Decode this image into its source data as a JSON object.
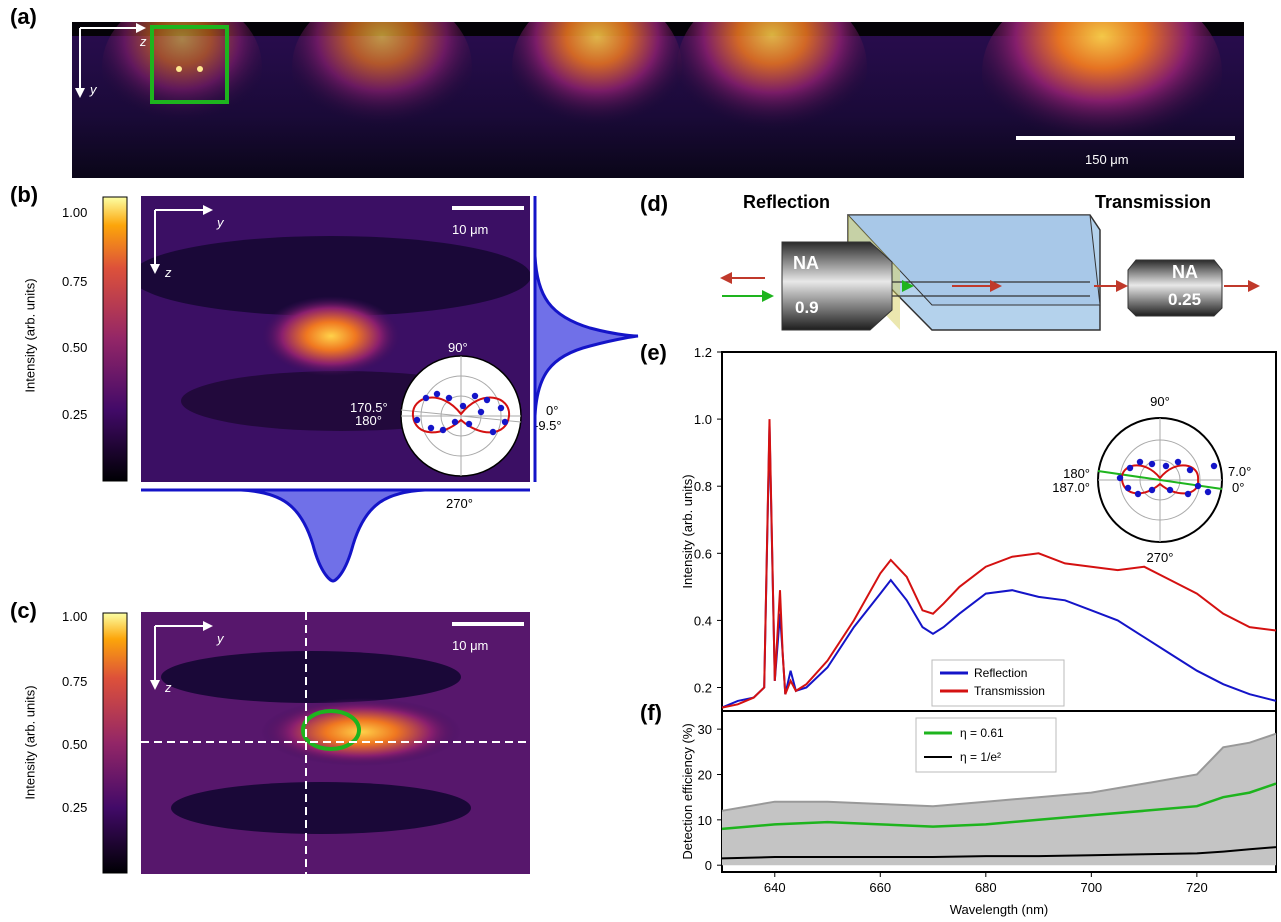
{
  "labels": {
    "a": "(a)",
    "b": "(b)",
    "c": "(c)",
    "d": "(d)",
    "e": "(e)",
    "f": "(f)"
  },
  "panel_a": {
    "scale_bar": "150 μm",
    "axis_z": "z",
    "axis_y": "y"
  },
  "panel_b": {
    "colorbar_label": "Intensity (arb. units)",
    "colorbar_ticks": [
      "1.00",
      "0.75",
      "0.50",
      "0.25"
    ],
    "scale_bar": "10 μm",
    "axis_y": "y",
    "axis_z": "z",
    "polar": {
      "top": "90°",
      "bottom": "270°",
      "left1": "170.5°",
      "left2": "180°",
      "right1": "0°",
      "right2": "-9.5°"
    }
  },
  "panel_c": {
    "colorbar_label": "Intensity (arb. units)",
    "colorbar_ticks": [
      "1.00",
      "0.75",
      "0.50",
      "0.25"
    ],
    "scale_bar": "10 μm",
    "axis_y": "y",
    "axis_z": "z"
  },
  "panel_d": {
    "reflection": "Reflection",
    "transmission": "Transmission",
    "na_left_top": "NA",
    "na_left_val": "0.9",
    "na_right_top": "NA",
    "na_right_val": "0.25"
  },
  "colors": {
    "reflection": "#1414c8",
    "transmission": "#d41111",
    "eta_fit": "#1eb41e",
    "eta_e2": "#000000",
    "band": "#c4c4c4",
    "band_edge": "#999999"
  },
  "chart_data": [
    {
      "type": "line",
      "ylabel": "Intensity (arb. units)",
      "ylim": [
        0.13,
        1.2
      ],
      "yticks": [
        "0.2",
        "0.4",
        "0.6",
        "0.8",
        "1.0",
        "1.2"
      ],
      "xlim": [
        630,
        735
      ],
      "x": [
        630,
        633,
        636,
        638,
        639,
        640,
        641,
        641.5,
        642,
        643,
        644,
        646,
        650,
        655,
        660,
        662,
        665,
        668,
        670,
        672,
        675,
        680,
        685,
        690,
        695,
        700,
        705,
        710,
        715,
        720,
        725,
        730,
        735
      ],
      "series": [
        {
          "name": "Reflection",
          "values": [
            0.14,
            0.16,
            0.17,
            0.2,
            0.98,
            0.22,
            0.42,
            0.3,
            0.18,
            0.25,
            0.19,
            0.2,
            0.26,
            0.38,
            0.48,
            0.52,
            0.46,
            0.38,
            0.36,
            0.38,
            0.42,
            0.48,
            0.49,
            0.47,
            0.46,
            0.43,
            0.4,
            0.35,
            0.3,
            0.25,
            0.21,
            0.18,
            0.16
          ]
        },
        {
          "name": "Transmission",
          "values": [
            0.14,
            0.15,
            0.17,
            0.2,
            1.0,
            0.22,
            0.49,
            0.3,
            0.18,
            0.22,
            0.19,
            0.21,
            0.28,
            0.4,
            0.54,
            0.58,
            0.53,
            0.43,
            0.42,
            0.45,
            0.5,
            0.56,
            0.59,
            0.6,
            0.57,
            0.56,
            0.55,
            0.56,
            0.52,
            0.48,
            0.42,
            0.38,
            0.37
          ]
        }
      ],
      "polar": {
        "top": "90°",
        "bottom": "270°",
        "left1": "180°",
        "left2": "187.0°",
        "right1": "7.0°",
        "right2": "0°"
      }
    },
    {
      "type": "area",
      "ylabel": "Detection efficiency (%)",
      "xlabel": "Wavelength (nm)",
      "ylim": [
        -1.5,
        34
      ],
      "yticks": [
        "0",
        "10",
        "20",
        "30"
      ],
      "xticks": [
        "640",
        "660",
        "680",
        "700",
        "720"
      ],
      "xlim": [
        630,
        735
      ],
      "x": [
        630,
        640,
        650,
        660,
        670,
        680,
        690,
        700,
        710,
        720,
        725,
        730,
        735
      ],
      "series": [
        {
          "name": "η = 0.61",
          "values": [
            8,
            9,
            9.5,
            9,
            8.5,
            9,
            10,
            11,
            12,
            13,
            15,
            16,
            18
          ]
        },
        {
          "name": "η = 1/e²",
          "values": [
            1.5,
            1.8,
            1.8,
            1.8,
            1.8,
            2,
            2,
            2.2,
            2.4,
            2.6,
            3,
            3.5,
            4
          ]
        },
        {
          "name": "upper",
          "values": [
            12,
            14,
            14,
            13.5,
            13,
            14,
            15,
            16,
            18,
            20,
            26,
            27,
            29
          ]
        }
      ]
    }
  ]
}
